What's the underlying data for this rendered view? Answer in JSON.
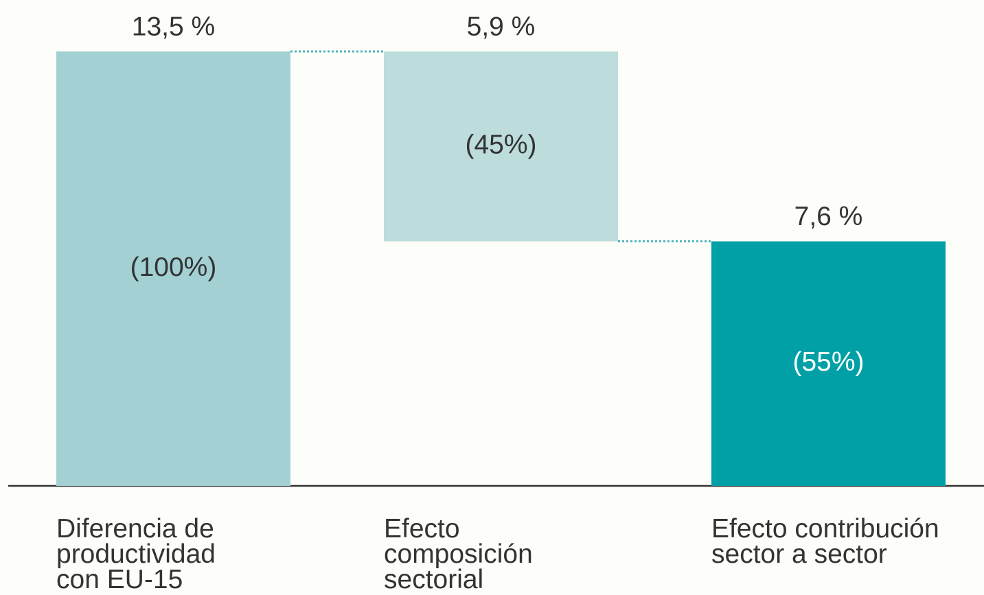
{
  "chart_data": {
    "type": "waterfall",
    "categories": [
      "Diferencia de productividad con EU-15",
      "Efecto composición sectorial",
      "Efecto contribución sector a sector"
    ],
    "values": [
      13.5,
      5.9,
      7.6
    ],
    "value_labels": [
      "13,5 %",
      "5,9 %",
      "7,6 %"
    ],
    "measures": [
      "total",
      "decrease",
      "total"
    ],
    "shares": [
      100,
      45,
      55
    ],
    "share_labels": [
      "(100%)",
      "(45%)",
      "(55%)"
    ],
    "colors": [
      "#a2d0d3",
      "#bddcdc",
      "#00a0a6"
    ],
    "share_label_colors": [
      "#333333",
      "#333333",
      "#ffffff"
    ],
    "connector_color": "#4fb3c0"
  }
}
